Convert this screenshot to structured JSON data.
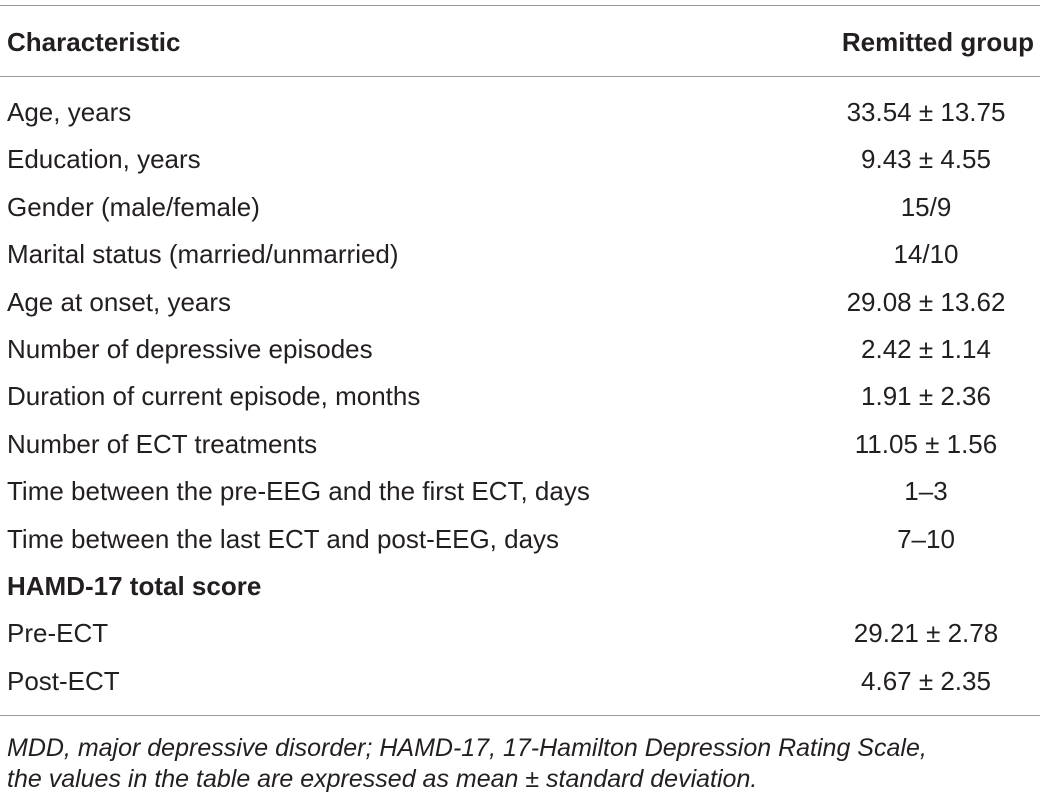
{
  "table": {
    "header": [
      "Characteristic",
      "Remitted group"
    ],
    "rows": [
      {
        "label": "Age, years",
        "value": "33.54 ± 13.75"
      },
      {
        "label": "Education, years",
        "value": "9.43 ± 4.55"
      },
      {
        "label": "Gender (male/female)",
        "value": "15/9"
      },
      {
        "label": "Marital status (married/unmarried)",
        "value": "14/10"
      },
      {
        "label": "Age at onset, years",
        "value": "29.08 ± 13.62"
      },
      {
        "label": "Number of depressive episodes",
        "value": "2.42 ± 1.14"
      },
      {
        "label": "Duration of current episode, months",
        "value": "1.91 ± 2.36"
      },
      {
        "label": "Number of ECT treatments",
        "value": "11.05 ± 1.56"
      },
      {
        "label": "Time between the pre-EEG and the first ECT, days",
        "value": "1–3"
      },
      {
        "label": "Time between the last ECT and post-EEG, days",
        "value": "7–10"
      },
      {
        "heading": "HAMD-17 total score"
      },
      {
        "label": "Pre-ECT",
        "value": "29.21 ± 2.78"
      },
      {
        "label": "Post-ECT",
        "value": "4.67 ± 2.35"
      }
    ],
    "footnote": [
      "MDD, major depressive disorder; HAMD-17, 17-Hamilton Depression Rating Scale,",
      "the values in the table are expressed as mean ± standard deviation."
    ]
  }
}
